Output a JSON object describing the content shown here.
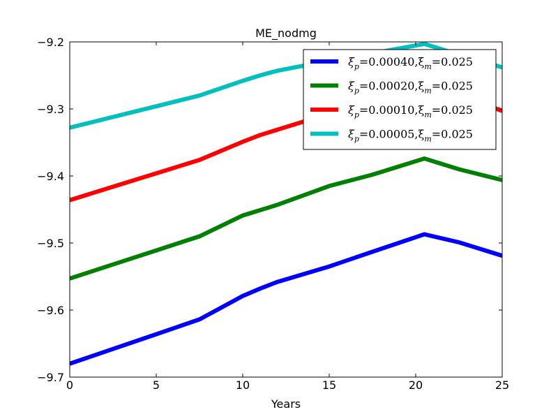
{
  "chart_data": {
    "type": "line",
    "title": "ME_nodmg",
    "xlabel": "Years",
    "ylabel": "",
    "xlim": [
      0,
      25
    ],
    "ylim": [
      -9.7,
      -9.2
    ],
    "xticks": [
      0,
      5,
      10,
      15,
      20,
      25
    ],
    "yticks": [
      -9.7,
      -9.6,
      -9.5,
      -9.4,
      -9.3,
      -9.2
    ],
    "xtick_labels": [
      "0",
      "5",
      "10",
      "15",
      "20",
      "25"
    ],
    "ytick_labels": [
      "−9.7",
      "−9.6",
      "−9.5",
      "−9.4",
      "−9.3",
      "−9.2"
    ],
    "grid": false,
    "legend_position": "top-right",
    "x": [
      0,
      2.5,
      5,
      7.5,
      10,
      11,
      12,
      15,
      17.5,
      20.5,
      22.5,
      25
    ],
    "series": [
      {
        "name": "ξp=0.00040,ξm=0.025",
        "color": "#0000ff",
        "values": [
          -9.68,
          -9.658,
          -9.636,
          -9.614,
          -9.579,
          -9.568,
          -9.558,
          -9.535,
          -9.513,
          -9.487,
          -9.499,
          -9.519
        ]
      },
      {
        "name": "ξp=0.00020,ξm=0.025",
        "color": "#008000",
        "values": [
          -9.553,
          -9.532,
          -9.511,
          -9.49,
          -9.459,
          -9.451,
          -9.443,
          -9.415,
          -9.398,
          -9.374,
          -9.39,
          -9.406
        ]
      },
      {
        "name": "ξp=0.00010,ξm=0.025",
        "color": "#ff0000",
        "values": [
          -9.436,
          -9.416,
          -9.396,
          -9.376,
          -9.349,
          -9.339,
          -9.331,
          -9.307,
          -9.288,
          -9.26,
          -9.278,
          -9.303
        ]
      },
      {
        "name": "ξp=0.00005,ξm=0.025",
        "color": "#00bfbf",
        "values": [
          -9.328,
          -9.312,
          -9.296,
          -9.28,
          -9.258,
          -9.25,
          -9.243,
          -9.228,
          -9.217,
          -9.203,
          -9.219,
          -9.238
        ]
      }
    ],
    "legend_entries": [
      {
        "sub1": "p",
        "val1": "0.00040",
        "sub2": "m",
        "val2": "0.025"
      },
      {
        "sub1": "p",
        "val1": "0.00020",
        "sub2": "m",
        "val2": "0.025"
      },
      {
        "sub1": "p",
        "val1": "0.00010",
        "sub2": "m",
        "val2": "0.025"
      },
      {
        "sub1": "p",
        "val1": "0.00005",
        "sub2": "m",
        "val2": "0.025"
      }
    ]
  }
}
